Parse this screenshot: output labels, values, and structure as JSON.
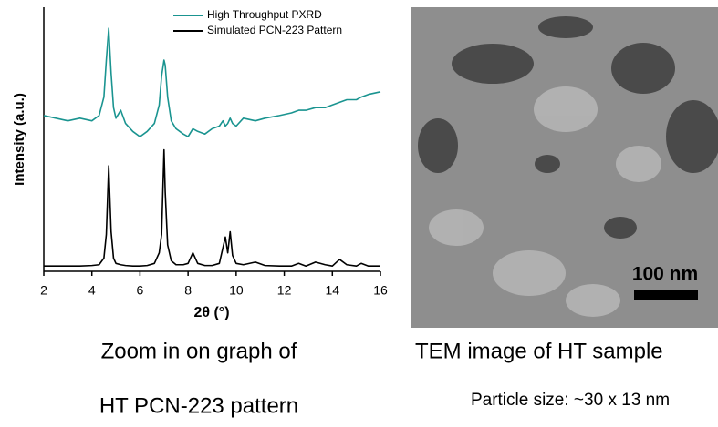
{
  "chart_data": {
    "type": "line",
    "x_label": "2θ (°)",
    "y_label": "Intensity (a.u.)",
    "x": [
      2,
      2.5,
      3,
      3.5,
      4,
      4.3,
      4.5,
      4.6,
      4.7,
      4.8,
      4.9,
      5.0,
      5.2,
      5.4,
      5.7,
      6.0,
      6.3,
      6.6,
      6.8,
      6.9,
      7.0,
      7.05,
      7.15,
      7.3,
      7.5,
      7.8,
      8.0,
      8.2,
      8.4,
      8.7,
      9.0,
      9.3,
      9.45,
      9.55,
      9.65,
      9.75,
      9.85,
      10.0,
      10.3,
      10.8,
      11.2,
      11.8,
      12.3,
      12.6,
      12.9,
      13.3,
      13.7,
      14.0,
      14.3,
      14.6,
      15.0,
      15.2,
      15.5,
      16
    ],
    "series": [
      {
        "name": "High Throughput PXRD",
        "color": "#1a9490",
        "values": [
          59,
          58,
          57,
          58,
          57,
          59,
          66,
          80,
          92,
          75,
          62,
          58,
          61,
          56,
          53,
          51,
          53,
          56,
          63,
          74,
          80,
          78,
          66,
          57,
          54,
          52,
          51,
          54,
          53,
          52,
          54,
          55,
          57,
          55,
          56,
          58,
          56,
          55,
          58,
          57,
          58,
          59,
          60,
          61,
          61,
          62,
          62,
          63,
          64,
          65,
          65,
          66,
          67,
          68
        ]
      },
      {
        "name": "Simulated PCN-223 Pattern",
        "color": "#000000",
        "values": [
          2,
          2,
          2,
          2,
          2.2,
          2.5,
          5,
          14,
          40,
          15,
          5,
          3,
          2.5,
          2.2,
          2,
          2,
          2.2,
          3,
          7,
          14,
          46,
          30,
          10,
          4,
          2.5,
          2.5,
          3,
          7,
          3,
          2.2,
          2.2,
          3,
          9,
          13,
          7,
          15,
          6,
          3,
          2.5,
          3.5,
          2.2,
          2,
          2,
          3,
          2,
          3.5,
          2.5,
          2,
          4.5,
          2.5,
          2,
          3,
          2,
          2
        ]
      }
    ],
    "xlim": [
      2,
      16
    ],
    "xticks": [
      2,
      4,
      6,
      8,
      10,
      12,
      14,
      16
    ],
    "ylim": [
      0,
      100
    ],
    "legend": "top-right"
  },
  "image": {
    "scale_bar": "100 nm"
  },
  "captions": {
    "left_line1": "Zoom in on graph of",
    "left_line2": "HT PCN-223 pattern",
    "right_line1": "TEM image of HT sample",
    "right_line2": "Particle size: ~30 x 13 nm"
  }
}
